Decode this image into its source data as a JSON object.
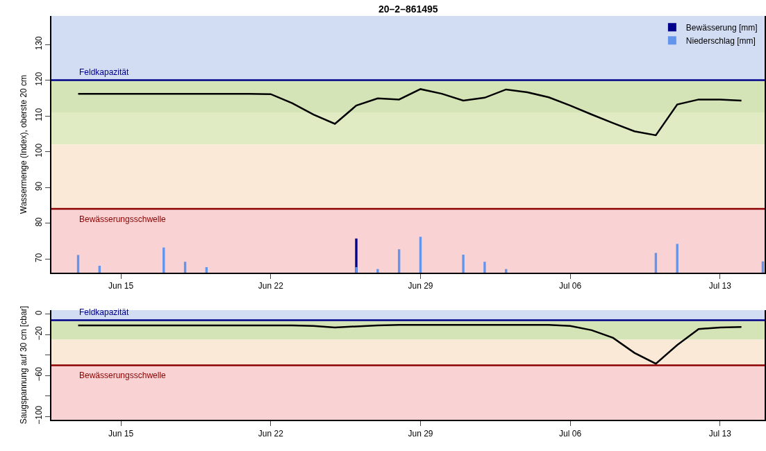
{
  "chart_data": [
    {
      "type": "line",
      "title": "20–2–861495",
      "ylabel": "Wassermenge (Index), oberste 20 cm",
      "xlim": [
        "--06-11T18:00",
        "--07-15T02:00"
      ],
      "xticks": [
        {
          "value": "--06-15",
          "label": "Jun 15"
        },
        {
          "value": "--06-22",
          "label": "Jun 22"
        },
        {
          "value": "--06-29",
          "label": "Jun 29"
        },
        {
          "value": "--07-06",
          "label": "Jul 06"
        },
        {
          "value": "--07-13",
          "label": "Jul 13"
        }
      ],
      "ylim": [
        66.1,
        138
      ],
      "yticks": [
        70,
        80,
        90,
        100,
        110,
        120,
        130
      ],
      "x": [
        "--06-13",
        "--06-14",
        "--06-15",
        "--06-16",
        "--06-17",
        "--06-18",
        "--06-19",
        "--06-20",
        "--06-21",
        "--06-22",
        "--06-23",
        "--06-24",
        "--06-25",
        "--06-26",
        "--06-27",
        "--06-28",
        "--06-29",
        "--06-30",
        "--07-01",
        "--07-02",
        "--07-03",
        "--07-04",
        "--07-05",
        "--07-06",
        "--07-07",
        "--07-08",
        "--07-09",
        "--07-10",
        "--07-11",
        "--07-12",
        "--07-13",
        "--07-14"
      ],
      "series": [
        {
          "color": "#000000",
          "values": [
            116.2,
            116.2,
            116.2,
            116.2,
            116.2,
            116.2,
            116.2,
            116.2,
            116.2,
            116.1,
            113.6,
            110.4,
            107.8,
            112.9,
            114.9,
            114.6,
            117.5,
            116.2,
            114.3,
            115.1,
            117.4,
            116.6,
            115.2,
            112.9,
            110.4,
            108.0,
            105.7,
            104.6,
            113.2,
            114.6,
            114.6,
            114.3
          ]
        },
        {
          "type": "bar",
          "name": "Bewässerung [mm]",
          "color": "#00008b",
          "x": [
            "--06-26"
          ],
          "base": [
            66.1
          ],
          "values": [
            9.6
          ]
        },
        {
          "type": "bar",
          "name": "Niederschlag [mm]",
          "color": "#6495ed",
          "x": [
            "--06-13",
            "--06-14",
            "--06-17",
            "--06-18",
            "--06-19",
            "--06-26",
            "--06-27",
            "--06-28",
            "--06-29",
            "--07-01",
            "--07-02",
            "--07-03",
            "--07-10",
            "--07-11",
            "--07-15"
          ],
          "base": [
            66.1,
            66.1,
            66.1,
            66.1,
            66.1,
            66.1,
            66.1,
            66.1,
            66.1,
            66.1,
            66.1,
            66.1,
            66.1,
            66.1,
            66.1
          ],
          "values": [
            5.0,
            2.0,
            7.1,
            3.1,
            1.6,
            1.6,
            1.1,
            6.6,
            10.1,
            5.1,
            3.1,
            1.1,
            5.6,
            8.1,
            3.2
          ]
        }
      ],
      "bands": [
        {
          "axis": "y",
          "from": 120,
          "to": 138,
          "color": "#d2dcf2"
        },
        {
          "axis": "y",
          "from": 111,
          "to": 120,
          "color": "#d4e4b6"
        },
        {
          "axis": "y",
          "from": 102,
          "to": 111,
          "color": "#e0ebc4"
        },
        {
          "axis": "y",
          "from": 84,
          "to": 102,
          "color": "#fae9d6"
        },
        {
          "axis": "y",
          "from": 66.1,
          "to": 84,
          "color": "#f9d2d3"
        }
      ],
      "ref_lines": [
        {
          "axis": "y",
          "value": 120,
          "label": "Feldkapazität",
          "color": "#00008b"
        },
        {
          "axis": "y",
          "value": 84,
          "label": "Bewässerungsschwelle",
          "color": "#8b0000"
        }
      ],
      "legend": "top right",
      "grid": false
    },
    {
      "type": "line",
      "ylabel": "Saugspannung auf 30 cm [cbar]",
      "xlim": [
        "--06-11T18:00",
        "--07-15T02:00"
      ],
      "xticks": [
        {
          "value": "--06-15",
          "label": "Jun 15"
        },
        {
          "value": "--06-22",
          "label": "Jun 22"
        },
        {
          "value": "--06-29",
          "label": "Jun 29"
        },
        {
          "value": "--07-06",
          "label": "Jul 06"
        },
        {
          "value": "--07-13",
          "label": "Jul 13"
        }
      ],
      "ylim": [
        -103.6,
        4
      ],
      "yticks": [
        0,
        -20,
        {
          "value": -40,
          "label": null
        },
        -60,
        {
          "value": -80,
          "label": null
        },
        -100
      ],
      "x": [
        "--06-13",
        "--06-14",
        "--06-15",
        "--06-16",
        "--06-17",
        "--06-18",
        "--06-19",
        "--06-20",
        "--06-21",
        "--06-22",
        "--06-23",
        "--06-24",
        "--06-25",
        "--06-26",
        "--06-27",
        "--06-28",
        "--06-29",
        "--06-30",
        "--07-01",
        "--07-02",
        "--07-03",
        "--07-04",
        "--07-05",
        "--07-06",
        "--07-07",
        "--07-08",
        "--07-09",
        "--07-10",
        "--07-11",
        "--07-12",
        "--07-13",
        "--07-14"
      ],
      "series": [
        {
          "color": "#000000",
          "values": [
            -11,
            -11,
            -11,
            -11,
            -11,
            -11,
            -11,
            -11,
            -11,
            -11,
            -11,
            -11.5,
            -13,
            -12,
            -11,
            -10.5,
            -10.5,
            -10.5,
            -10.5,
            -10.5,
            -10.5,
            -10.5,
            -10.5,
            -11.6,
            -15.7,
            -23.2,
            -37.9,
            -48.5,
            -30.2,
            -14.6,
            -13,
            -12.6
          ]
        }
      ],
      "bands": [
        {
          "axis": "y",
          "from": -6,
          "to": 4,
          "color": "#d2dcf2"
        },
        {
          "axis": "y",
          "from": -25,
          "to": -6,
          "color": "#d4e4b6"
        },
        {
          "axis": "y",
          "from": -50,
          "to": -25,
          "color": "#fae9d6"
        },
        {
          "axis": "y",
          "from": -103.6,
          "to": -50,
          "color": "#f9d2d3"
        }
      ],
      "ref_lines": [
        {
          "axis": "y",
          "value": -6,
          "label": "Feldkapazität",
          "color": "#00008b"
        },
        {
          "axis": "y",
          "value": -50,
          "label": "Bewässerungsschwelle",
          "color": "#8b0000"
        }
      ],
      "legend": false,
      "grid": false
    }
  ]
}
